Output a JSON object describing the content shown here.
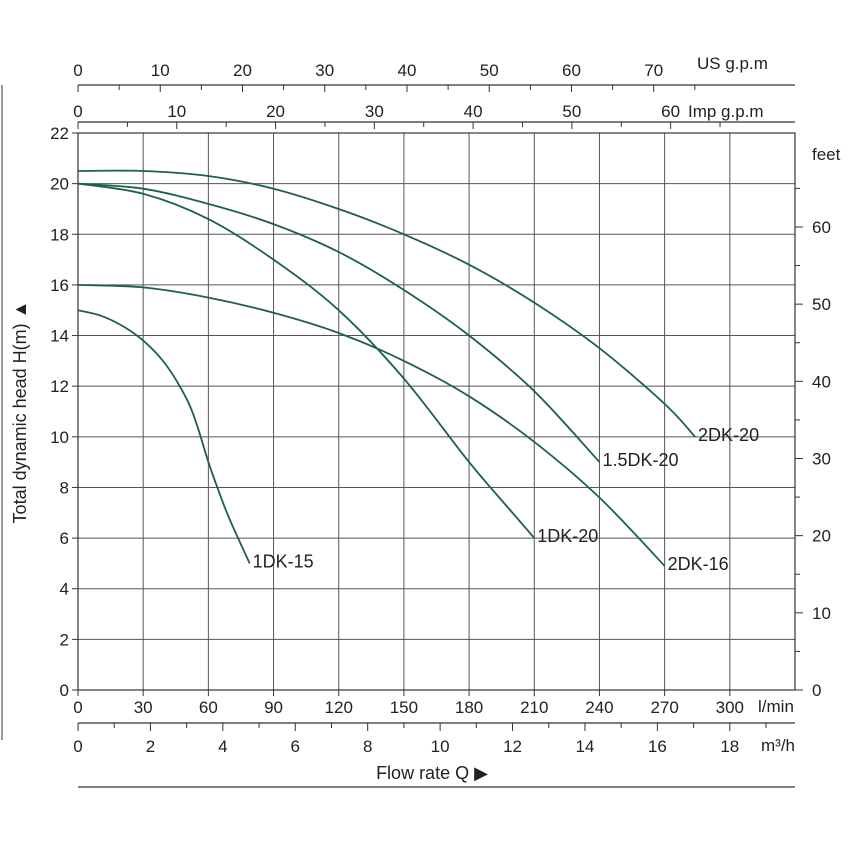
{
  "chart_data": {
    "type": "line",
    "ylabel": "Total dynamic head H(m) ▲",
    "xlabel": "Flow  rate Q ▶",
    "ylim": [
      0,
      22
    ],
    "xlim": [
      0,
      330
    ],
    "grid": true,
    "curve_color": "#1f5f4f",
    "left_axis": {
      "ticks": [
        0,
        2,
        4,
        6,
        8,
        10,
        12,
        14,
        16,
        18,
        20,
        22
      ]
    },
    "right_axis": {
      "unit": "feet",
      "ticks": [
        "0",
        "10",
        "20",
        "30",
        "40",
        "50",
        "60"
      ],
      "tick_values_ft": [
        0,
        10,
        20,
        30,
        40,
        50,
        60
      ]
    },
    "bottom_axis_lmin": {
      "unit": "l/min",
      "ticks": [
        "0",
        "30",
        "60",
        "90",
        "120",
        "150",
        "180",
        "210",
        "240",
        "270",
        "300"
      ],
      "tick_values": [
        0,
        30,
        60,
        90,
        120,
        150,
        180,
        210,
        240,
        270,
        300
      ]
    },
    "bottom_axis_m3h": {
      "unit": "m³/h",
      "ticks": [
        "0",
        "2",
        "4",
        "6",
        "8",
        "10",
        "12",
        "14",
        "16",
        "18"
      ],
      "tick_values": [
        0,
        2,
        4,
        6,
        8,
        10,
        12,
        14,
        16,
        18
      ]
    },
    "top_axis_us": {
      "unit": "US g.p.m",
      "ticks": [
        "0",
        "10",
        "20",
        "30",
        "40",
        "50",
        "60",
        "70"
      ],
      "tick_values": [
        0,
        10,
        20,
        30,
        40,
        50,
        60,
        70
      ]
    },
    "top_axis_imp": {
      "unit": "Imp g.p.m",
      "ticks": [
        "0",
        "10",
        "20",
        "30",
        "40",
        "50",
        "60"
      ],
      "tick_values": [
        0,
        10,
        20,
        30,
        40,
        50,
        60
      ]
    },
    "series": [
      {
        "name": "1DK-15",
        "x": [
          0,
          10,
          20,
          30,
          40,
          50,
          55,
          60,
          65,
          70,
          79
        ],
        "y": [
          15.0,
          14.8,
          14.4,
          13.8,
          12.9,
          11.5,
          10.4,
          9.0,
          7.8,
          6.7,
          5.0
        ]
      },
      {
        "name": "1DK-20",
        "x": [
          0,
          30,
          60,
          90,
          120,
          150,
          180,
          200,
          210
        ],
        "y": [
          20.0,
          19.6,
          18.6,
          17.0,
          15.0,
          12.3,
          9.0,
          7.0,
          6.0
        ]
      },
      {
        "name": "1.5DK-20",
        "x": [
          0,
          30,
          60,
          90,
          120,
          150,
          180,
          210,
          240
        ],
        "y": [
          20.0,
          19.8,
          19.2,
          18.4,
          17.3,
          15.8,
          14.0,
          11.8,
          9.0
        ]
      },
      {
        "name": "2DK-16",
        "x": [
          0,
          30,
          60,
          90,
          120,
          150,
          180,
          210,
          240,
          270
        ],
        "y": [
          16.0,
          15.9,
          15.5,
          14.9,
          14.1,
          13.0,
          11.6,
          9.8,
          7.6,
          4.9
        ]
      },
      {
        "name": "2DK-20",
        "x": [
          0,
          30,
          60,
          90,
          120,
          150,
          180,
          210,
          240,
          270,
          284
        ],
        "y": [
          20.5,
          20.5,
          20.3,
          19.8,
          19.0,
          18.0,
          16.8,
          15.3,
          13.5,
          11.3,
          10.0
        ]
      }
    ]
  }
}
